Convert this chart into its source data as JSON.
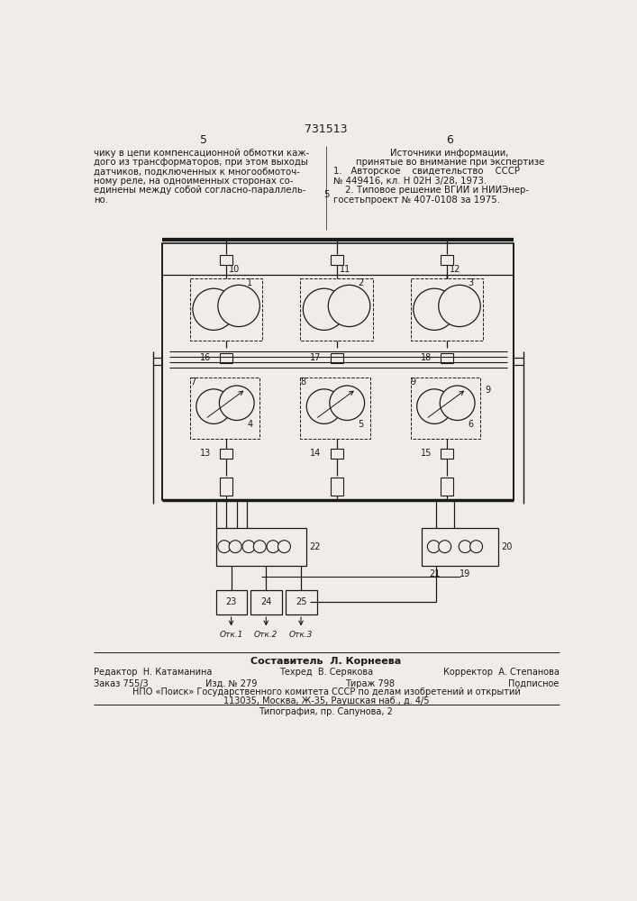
{
  "page_number_center": "731513",
  "page_left": "5",
  "page_right": "6",
  "text_left_lines": [
    "чику в цепи компенсационной обмотки каж-",
    "дого из трансформаторов, при этом выходы",
    "датчиков, подключенных к многообмоточ-",
    "ному реле, на одноименных сторонах со-",
    "единены между собой согласно-параллель-",
    "но."
  ],
  "text_right_lines": [
    [
      "center",
      "Источники информации,"
    ],
    [
      "center",
      "принятые во внимание при экспертизе"
    ],
    [
      "left",
      "1.   Авторское    свидетельство    СССР"
    ],
    [
      "left",
      "№ 449416, кл. Н 02Н 3/28, 1973."
    ],
    [
      "left",
      "    2. Типовое решение ВГИИ и НИИЭнер-"
    ],
    [
      "left",
      "госетьпроект № 407-0108 за 1975."
    ]
  ],
  "text_right_number5": "5",
  "footer_line1": "Составитель  Л. Корнеева",
  "footer_line2_col1": "Редактор  Н. Катаманина",
  "footer_line2_col2": "Техред  В. Серякова",
  "footer_line2_col3": "Корректор  А. Степанова",
  "footer_line3_col1": "Заказ 755/3",
  "footer_line3_col2": "Изд. № 279",
  "footer_line3_col3": "Тираж 798",
  "footer_line3_col4": "Подписное",
  "footer_line4": "НПО «Поиск» Государственного комитета СССР по делам изобретений и открытий",
  "footer_line5": "113035, Москва, Ж-35, Раушская наб., д. 4/5",
  "footer_line6": "Типография, пр. Сапунова, 2",
  "bg_color": "#f0ede8",
  "line_color": "#1a1a1a",
  "text_color": "#1a1a1a"
}
